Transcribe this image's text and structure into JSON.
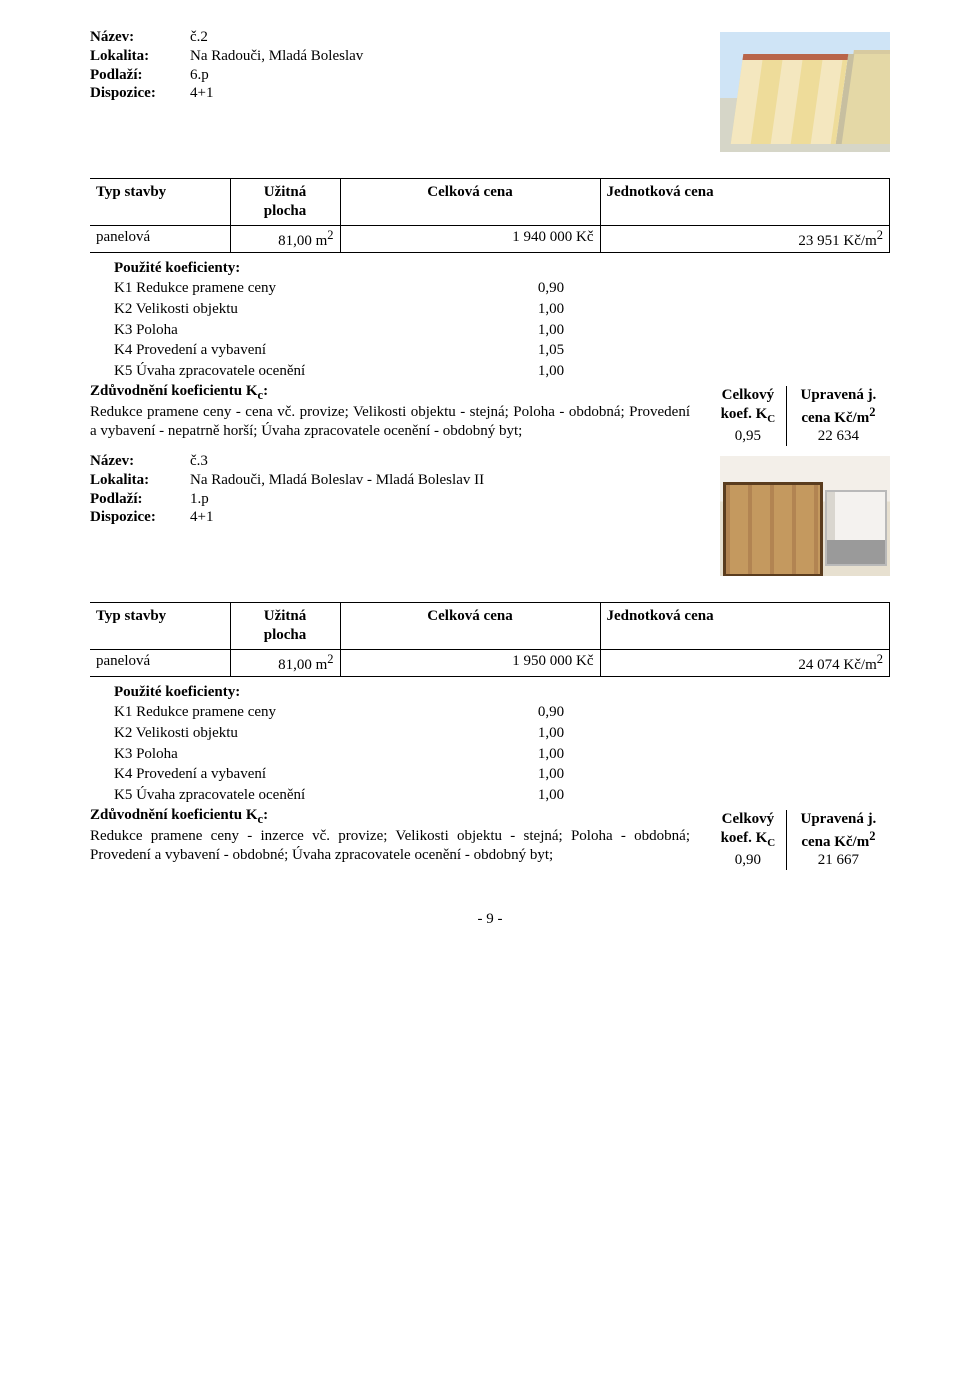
{
  "labels": {
    "nazev": "Název:",
    "lokalita": "Lokalita:",
    "podlazi": "Podlaží:",
    "dispozice": "Dispozice:"
  },
  "section1": {
    "nazev": "č.2",
    "lokalita": "Na Radouči, Mladá Boleslav",
    "podlazi": "6.p",
    "dispozice": "4+1"
  },
  "table_headers": {
    "typ_stavby": "Typ stavby",
    "uzitna_plocha_l1": "Užitná",
    "uzitna_plocha_l2": "plocha",
    "celkova_cena": "Celková cena",
    "jednotkova_cena": "Jednotková cena"
  },
  "table1": {
    "typ": "panelová",
    "plocha": "81,00 m",
    "plocha_exp": "2",
    "cena": "1 940 000 Kč",
    "jedn": "23 951 Kč/m",
    "jedn_exp": "2"
  },
  "koef_heading": "Použité koeficienty:",
  "koef_rows1": [
    {
      "k": "K1 Redukce pramene ceny",
      "v": "0,90"
    },
    {
      "k": "K2 Velikosti objektu",
      "v": "1,00"
    },
    {
      "k": "K3 Poloha",
      "v": "1,00"
    },
    {
      "k": "K4 Provedení a vybavení",
      "v": "1,05"
    },
    {
      "k": "K5 Úvaha zpracovatele ocenění",
      "v": "1,00"
    }
  ],
  "just_heading": "Zdůvodnění koeficientu K",
  "just_sub": "c",
  "just_colon": ":",
  "just_text1": "Redukce pramene ceny - cena vč. provize; Velikosti objektu - stejná; Poloha - obdobná; Provedení a vybavení - nepatrně horší; Úvaha zpracovatele ocenění - obdobný byt;",
  "sidebox": {
    "celkovy": "Celkový",
    "koef": "koef. K",
    "koef_sub": "C",
    "upravena": "Upravená j.",
    "cena_l": "cena Kč/m",
    "cena_exp": "2"
  },
  "side1": {
    "kc": "0,95",
    "cena": "22 634"
  },
  "section2": {
    "nazev": "č.3",
    "lokalita": "Na Radouči, Mladá Boleslav - Mladá Boleslav II",
    "podlazi": "1.p",
    "dispozice": "4+1"
  },
  "table2": {
    "typ": "panelová",
    "plocha": "81,00 m",
    "plocha_exp": "2",
    "cena": "1 950 000 Kč",
    "jedn": "24 074 Kč/m",
    "jedn_exp": "2"
  },
  "koef_rows2": [
    {
      "k": "K1 Redukce pramene ceny",
      "v": "0,90"
    },
    {
      "k": "K2 Velikosti objektu",
      "v": "1,00"
    },
    {
      "k": "K3 Poloha",
      "v": "1,00"
    },
    {
      "k": "K4 Provedení a vybavení",
      "v": "1,00"
    },
    {
      "k": "K5 Úvaha zpracovatele ocenění",
      "v": "1,00"
    }
  ],
  "just_text2": "Redukce pramene ceny - inzerce vč. provize; Velikosti objektu - stejná; Poloha - obdobná; Provedení a vybavení - obdobné; Úvaha zpracovatele ocenění - obdobný byt;",
  "side2": {
    "kc": "0,90",
    "cena": "21 667"
  },
  "page_num": "- 9 -"
}
